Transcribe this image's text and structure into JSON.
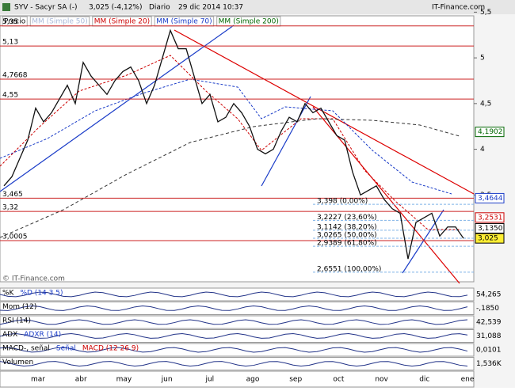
{
  "header": {
    "title": "SYV - Sacyr SA (-)",
    "quote": "3,025 (-4,12%)",
    "period": "Diario",
    "date": "29 dic 2014 10:37",
    "brand": "IT-Finance.com"
  },
  "legend": [
    {
      "text": "Precio",
      "color": "#000000"
    },
    {
      "text": "MM (Simple 50)",
      "color": "#a8b8d8"
    },
    {
      "text": "MM (Simple 20)",
      "color": "#cc0000"
    },
    {
      "text": "MM (Simple 70)",
      "color": "#1a3cc8"
    },
    {
      "text": "MM (Simple 200)",
      "color": "#006600"
    }
  ],
  "watermark": "© IT-Finance.com",
  "chart_data": {
    "type": "line",
    "color": "#111111",
    "values": [
      3.6,
      3.7,
      3.9,
      4.1,
      4.45,
      4.3,
      4.4,
      4.55,
      4.7,
      4.5,
      4.95,
      4.8,
      4.7,
      4.6,
      4.75,
      4.85,
      4.9,
      4.75,
      4.5,
      4.7,
      5.0,
      5.3,
      5.1,
      5.1,
      4.8,
      4.5,
      4.6,
      4.3,
      4.35,
      4.5,
      4.4,
      4.25,
      4.0,
      3.95,
      4.0,
      4.2,
      4.35,
      4.3,
      4.5,
      4.4,
      4.45,
      4.3,
      4.15,
      4.1,
      3.75,
      3.5,
      3.55,
      3.6,
      3.45,
      3.35,
      3.3,
      2.8,
      3.2,
      3.25,
      3.3,
      3.05,
      3.15,
      3.15,
      3.025
    ],
    "x_labels": [
      "mar",
      "abr",
      "may",
      "jun",
      "jul",
      "ago",
      "sep",
      "oct",
      "nov",
      "dic",
      "ene"
    ],
    "ylim": [
      2.55,
      5.46
    ],
    "yticks": [
      {
        "value": 3.5,
        "label": "3,5"
      },
      {
        "value": 4,
        "label": "4"
      },
      {
        "value": 4.5,
        "label": "4,5"
      },
      {
        "value": 5,
        "label": "5"
      },
      {
        "value": 5.5,
        "label": "5,5"
      }
    ],
    "levels": [
      {
        "value": 5.35,
        "label": "5,35"
      },
      {
        "value": 5.13,
        "label": "5,13"
      },
      {
        "value": 4.7668,
        "label": "4,7668"
      },
      {
        "value": 4.55,
        "label": "4,55"
      },
      {
        "value": 3.465,
        "label": "3,465"
      },
      {
        "value": 3.32,
        "label": "3,32"
      },
      {
        "value": 3.0005,
        "label": "3,0005"
      }
    ],
    "fibonacci": [
      {
        "value": 3.398,
        "label": "3,398 (0,00%)"
      },
      {
        "value": 3.2227,
        "label": "3,2227 (23,60%)"
      },
      {
        "value": 3.1142,
        "label": "3,1142 (38,20%)"
      },
      {
        "value": 3.0265,
        "label": "3,0265 (50,00%)"
      },
      {
        "value": 2.9389,
        "label": "2,9389 (61,80%)"
      },
      {
        "value": 2.6551,
        "label": "2,6551 (100,00%)"
      }
    ],
    "value_boxes": [
      {
        "value": 4.1902,
        "label": "4,1902",
        "color": "#006600",
        "bg": "#ffffff"
      },
      {
        "value": 3.4644,
        "label": "3,4644",
        "color": "#1a3cc8",
        "bg": "#ffffff"
      },
      {
        "value": 3.2531,
        "label": "3,2531",
        "color": "#cc0000",
        "bg": "#ffffff"
      },
      {
        "value": 3.135,
        "label": "3,1350",
        "color": "#000000",
        "bg": "#ffffff"
      },
      {
        "value": 3.025,
        "label": "3,025",
        "color": "#000000",
        "bg": "#ffee33"
      }
    ]
  },
  "indicators": [
    {
      "labels": [
        "%K",
        "%D (14 3 5)"
      ],
      "value": "54,265"
    },
    {
      "labels": [
        "Mom (12)"
      ],
      "value": "-,1850"
    },
    {
      "labels": [
        "RSI (14)"
      ],
      "value": "42,539"
    },
    {
      "labels": [
        "ADX",
        "ADXR (14)"
      ],
      "value": "31,088"
    },
    {
      "labels": [
        "MACD-, señal",
        "Señal",
        "MACD (12 26 9)"
      ],
      "value": "0,0101"
    },
    {
      "labels": [
        "Volumen"
      ],
      "value": "1,536K"
    }
  ]
}
